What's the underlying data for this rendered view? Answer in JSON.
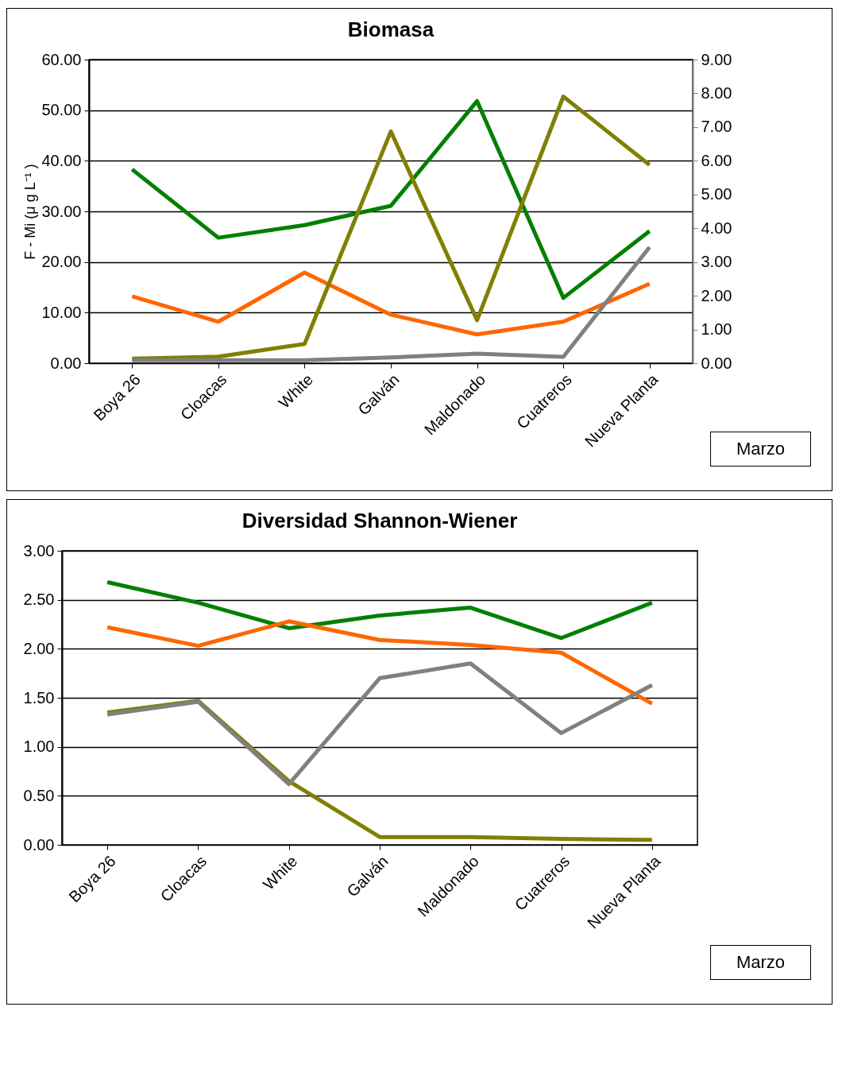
{
  "chart_data": [
    {
      "type": "line",
      "title": "Biomasa",
      "ylabel": "F - Mi (μ g L⁻¹ )",
      "categories": [
        "Boya 26",
        "Cloacas",
        "White",
        "Galván",
        "Maldonado",
        "Cuatreros",
        "Nueva Planta"
      ],
      "series": [
        {
          "color": "#008000",
          "values": [
            38.3,
            24.8,
            27.3,
            31.1,
            51.8,
            12.9,
            26.1
          ]
        },
        {
          "color": "#ff6600",
          "values": [
            13.2,
            8.2,
            17.9,
            9.6,
            5.7,
            8.2,
            15.7
          ]
        },
        {
          "color": "#808000",
          "values": [
            0.9,
            1.3,
            3.8,
            45.8,
            8.5,
            52.7,
            39.2
          ]
        },
        {
          "color": "#808080",
          "axis": "y2",
          "values": [
            0.09,
            0.09,
            0.09,
            0.17,
            0.28,
            0.19,
            3.44
          ]
        }
      ],
      "ylim": [
        0,
        60
      ],
      "yticks": [
        {
          "value": 0,
          "label": "0.00"
        },
        {
          "value": 10,
          "label": "10.00"
        },
        {
          "value": 20,
          "label": "20.00"
        },
        {
          "value": 30,
          "label": "30.00"
        },
        {
          "value": 40,
          "label": "40.00"
        },
        {
          "value": 50,
          "label": "50.00"
        },
        {
          "value": 60,
          "label": "60.00"
        }
      ],
      "y2lim": [
        0,
        9
      ],
      "y2ticks": [
        {
          "value": 0,
          "label": "0.00"
        },
        {
          "value": 1,
          "label": "1.00"
        },
        {
          "value": 2,
          "label": "2.00"
        },
        {
          "value": 3,
          "label": "3.00"
        },
        {
          "value": 4,
          "label": "4.00"
        },
        {
          "value": 5,
          "label": "5.00"
        },
        {
          "value": 6,
          "label": "6.00"
        },
        {
          "value": 7,
          "label": "7.00"
        },
        {
          "value": 8,
          "label": "8.00"
        },
        {
          "value": 9,
          "label": "9.00"
        }
      ],
      "grid": "y",
      "annotations": [
        "Marzo"
      ]
    },
    {
      "type": "line",
      "title": "Diversidad Shannon-Wiener",
      "categories": [
        "Boya 26",
        "Cloacas",
        "White",
        "Galván",
        "Maldonado",
        "Cuatreros",
        "Nueva Planta"
      ],
      "series": [
        {
          "color": "#008000",
          "values": [
            2.68,
            2.47,
            2.21,
            2.34,
            2.42,
            2.11,
            2.47
          ]
        },
        {
          "color": "#ff6600",
          "values": [
            2.22,
            2.03,
            2.28,
            2.09,
            2.04,
            1.96,
            1.44
          ]
        },
        {
          "color": "#808000",
          "values": [
            1.35,
            1.47,
            0.65,
            0.08,
            0.08,
            0.06,
            0.05
          ]
        },
        {
          "color": "#808080",
          "values": [
            1.33,
            1.46,
            0.62,
            1.7,
            1.85,
            1.14,
            1.63
          ]
        }
      ],
      "ylim": [
        0,
        3
      ],
      "yticks": [
        {
          "value": 0,
          "label": "0.00"
        },
        {
          "value": 0.5,
          "label": "0.50"
        },
        {
          "value": 1,
          "label": "1.00"
        },
        {
          "value": 1.5,
          "label": "1.50"
        },
        {
          "value": 2,
          "label": "2.00"
        },
        {
          "value": 2.5,
          "label": "2.50"
        },
        {
          "value": 3,
          "label": "3.00"
        }
      ],
      "grid": "y",
      "annotations": [
        "Marzo"
      ]
    }
  ]
}
